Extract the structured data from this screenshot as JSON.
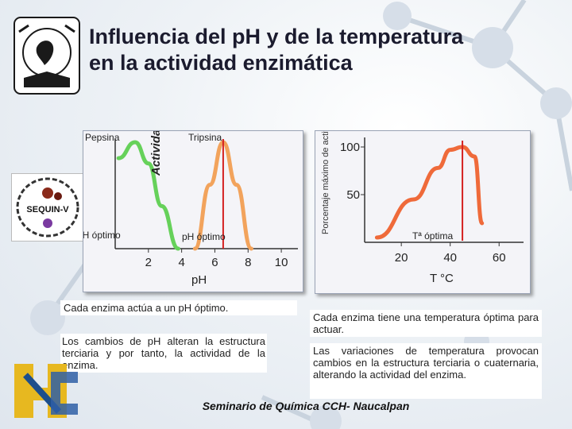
{
  "title_line1": "Influencia del pH y de la temperatura",
  "title_line2": "en la actividad enzimática",
  "logos": {
    "sequin": "SEQUIN-V"
  },
  "chart_data": [
    {
      "type": "line",
      "title": "",
      "xlabel": "pH",
      "ylabel": "Actividad relativa",
      "x_ticks": [
        2,
        4,
        6,
        8,
        10
      ],
      "xlim": [
        0,
        11
      ],
      "series": [
        {
          "name": "Pepsina",
          "color": "#66d15a",
          "x": [
            0.2,
            1.2,
            2,
            2.8,
            3.8
          ],
          "y": [
            0.85,
            1.0,
            0.8,
            0.4,
            0.0
          ]
        },
        {
          "name": "Tripsina",
          "color": "#f2a35c",
          "x": [
            4.8,
            5.7,
            6.5,
            7.3,
            8.2
          ],
          "y": [
            0.0,
            0.6,
            1.0,
            0.6,
            0.0
          ]
        }
      ],
      "annotations": [
        "pH óptimo",
        "pH óptimo"
      ],
      "optimum_lines": [
        6.5
      ]
    },
    {
      "type": "line",
      "title": "",
      "xlabel": "T °C",
      "ylabel": "Porcentaje máximo de actividad",
      "x_ticks": [
        20,
        40,
        60
      ],
      "y_ticks": [
        50,
        100
      ],
      "xlim": [
        5,
        70
      ],
      "ylim": [
        0,
        110
      ],
      "series": [
        {
          "name": "",
          "color": "#ef6a3a",
          "x": [
            10,
            25,
            35,
            40,
            45,
            50,
            53
          ],
          "y": [
            5,
            45,
            78,
            97,
            100,
            90,
            20
          ]
        }
      ],
      "annotations": [
        "Tª óptima"
      ],
      "optimum_lines": [
        45
      ]
    }
  ],
  "captions": {
    "left_1": "Cada enzima actúa a un pH óptimo.",
    "left_2": "Los cambios de pH alteran la estructura terciaria y por tanto, la actividad de la enzima.",
    "right_1": "Cada enzima tiene una temperatura óptima para actuar.",
    "right_2": "Las variaciones de temperatura provocan cambios en la estructura terciaria o cuaternaria, alterando la actividad del enzima."
  },
  "footer": "Seminario de Química CCH- Naucalpan"
}
